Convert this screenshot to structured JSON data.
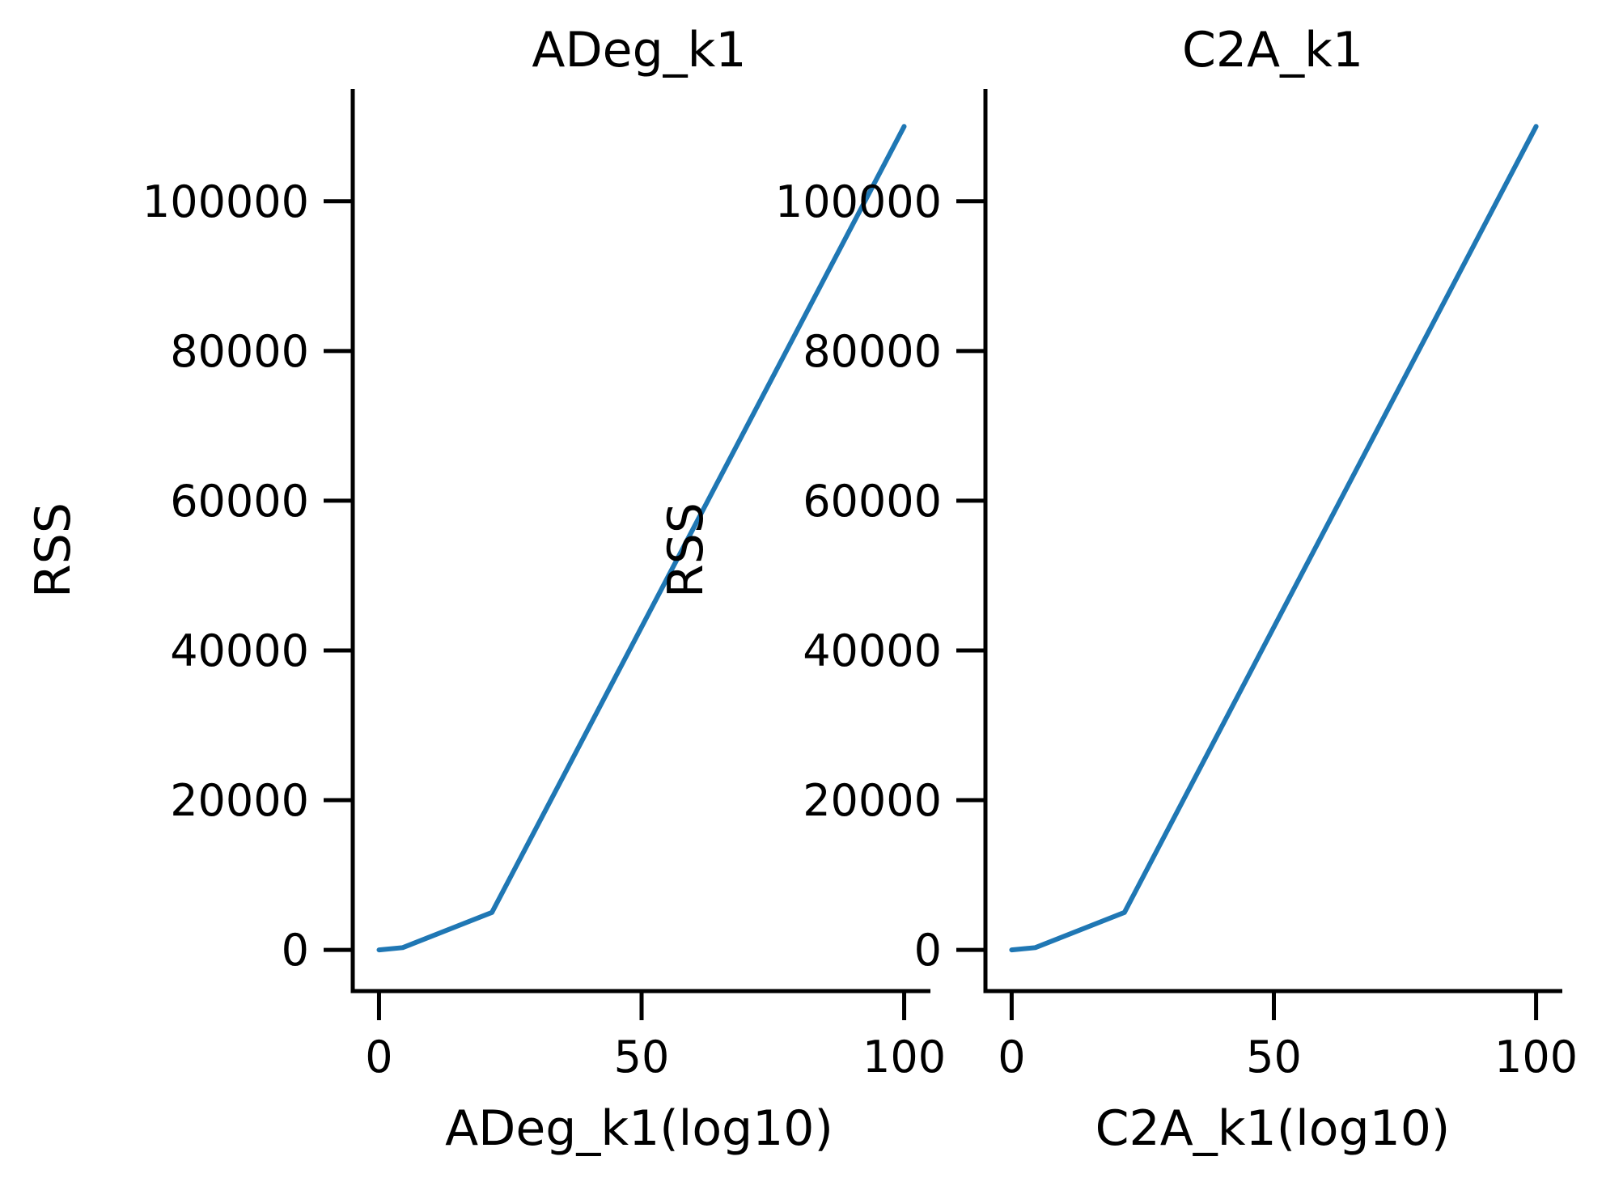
{
  "colors": {
    "line": "#1f77b4",
    "axis": "#000000",
    "background": "#ffffff"
  },
  "chart_data": [
    {
      "type": "line",
      "title": "ADeg_k1",
      "xlabel": "ADeg_k1(log10)",
      "ylabel": "RSS",
      "xlim": [
        -5,
        105
      ],
      "ylim": [
        -5500,
        115000
      ],
      "xticks": [
        0,
        50,
        100
      ],
      "yticks": [
        0,
        20000,
        40000,
        60000,
        80000,
        100000
      ],
      "xtick_labels": [
        "0",
        "50",
        "100"
      ],
      "ytick_labels": [
        "0",
        "20000",
        "40000",
        "60000",
        "80000",
        "100000"
      ],
      "grid": false,
      "series": [
        {
          "x": [
            0,
            4.5,
            21.5,
            100
          ],
          "y": [
            0,
            300,
            5000,
            110000
          ]
        }
      ]
    },
    {
      "type": "line",
      "title": "C2A_k1",
      "xlabel": "C2A_k1(log10)",
      "ylabel": "RSS",
      "xlim": [
        -5,
        105
      ],
      "ylim": [
        -5500,
        115000
      ],
      "xticks": [
        0,
        50,
        100
      ],
      "yticks": [
        0,
        20000,
        40000,
        60000,
        80000,
        100000
      ],
      "xtick_labels": [
        "0",
        "50",
        "100"
      ],
      "ytick_labels": [
        "0",
        "20000",
        "40000",
        "60000",
        "80000",
        "100000"
      ],
      "grid": false,
      "series": [
        {
          "x": [
            0,
            4.5,
            21.5,
            100
          ],
          "y": [
            0,
            300,
            5000,
            110000
          ]
        }
      ]
    }
  ]
}
